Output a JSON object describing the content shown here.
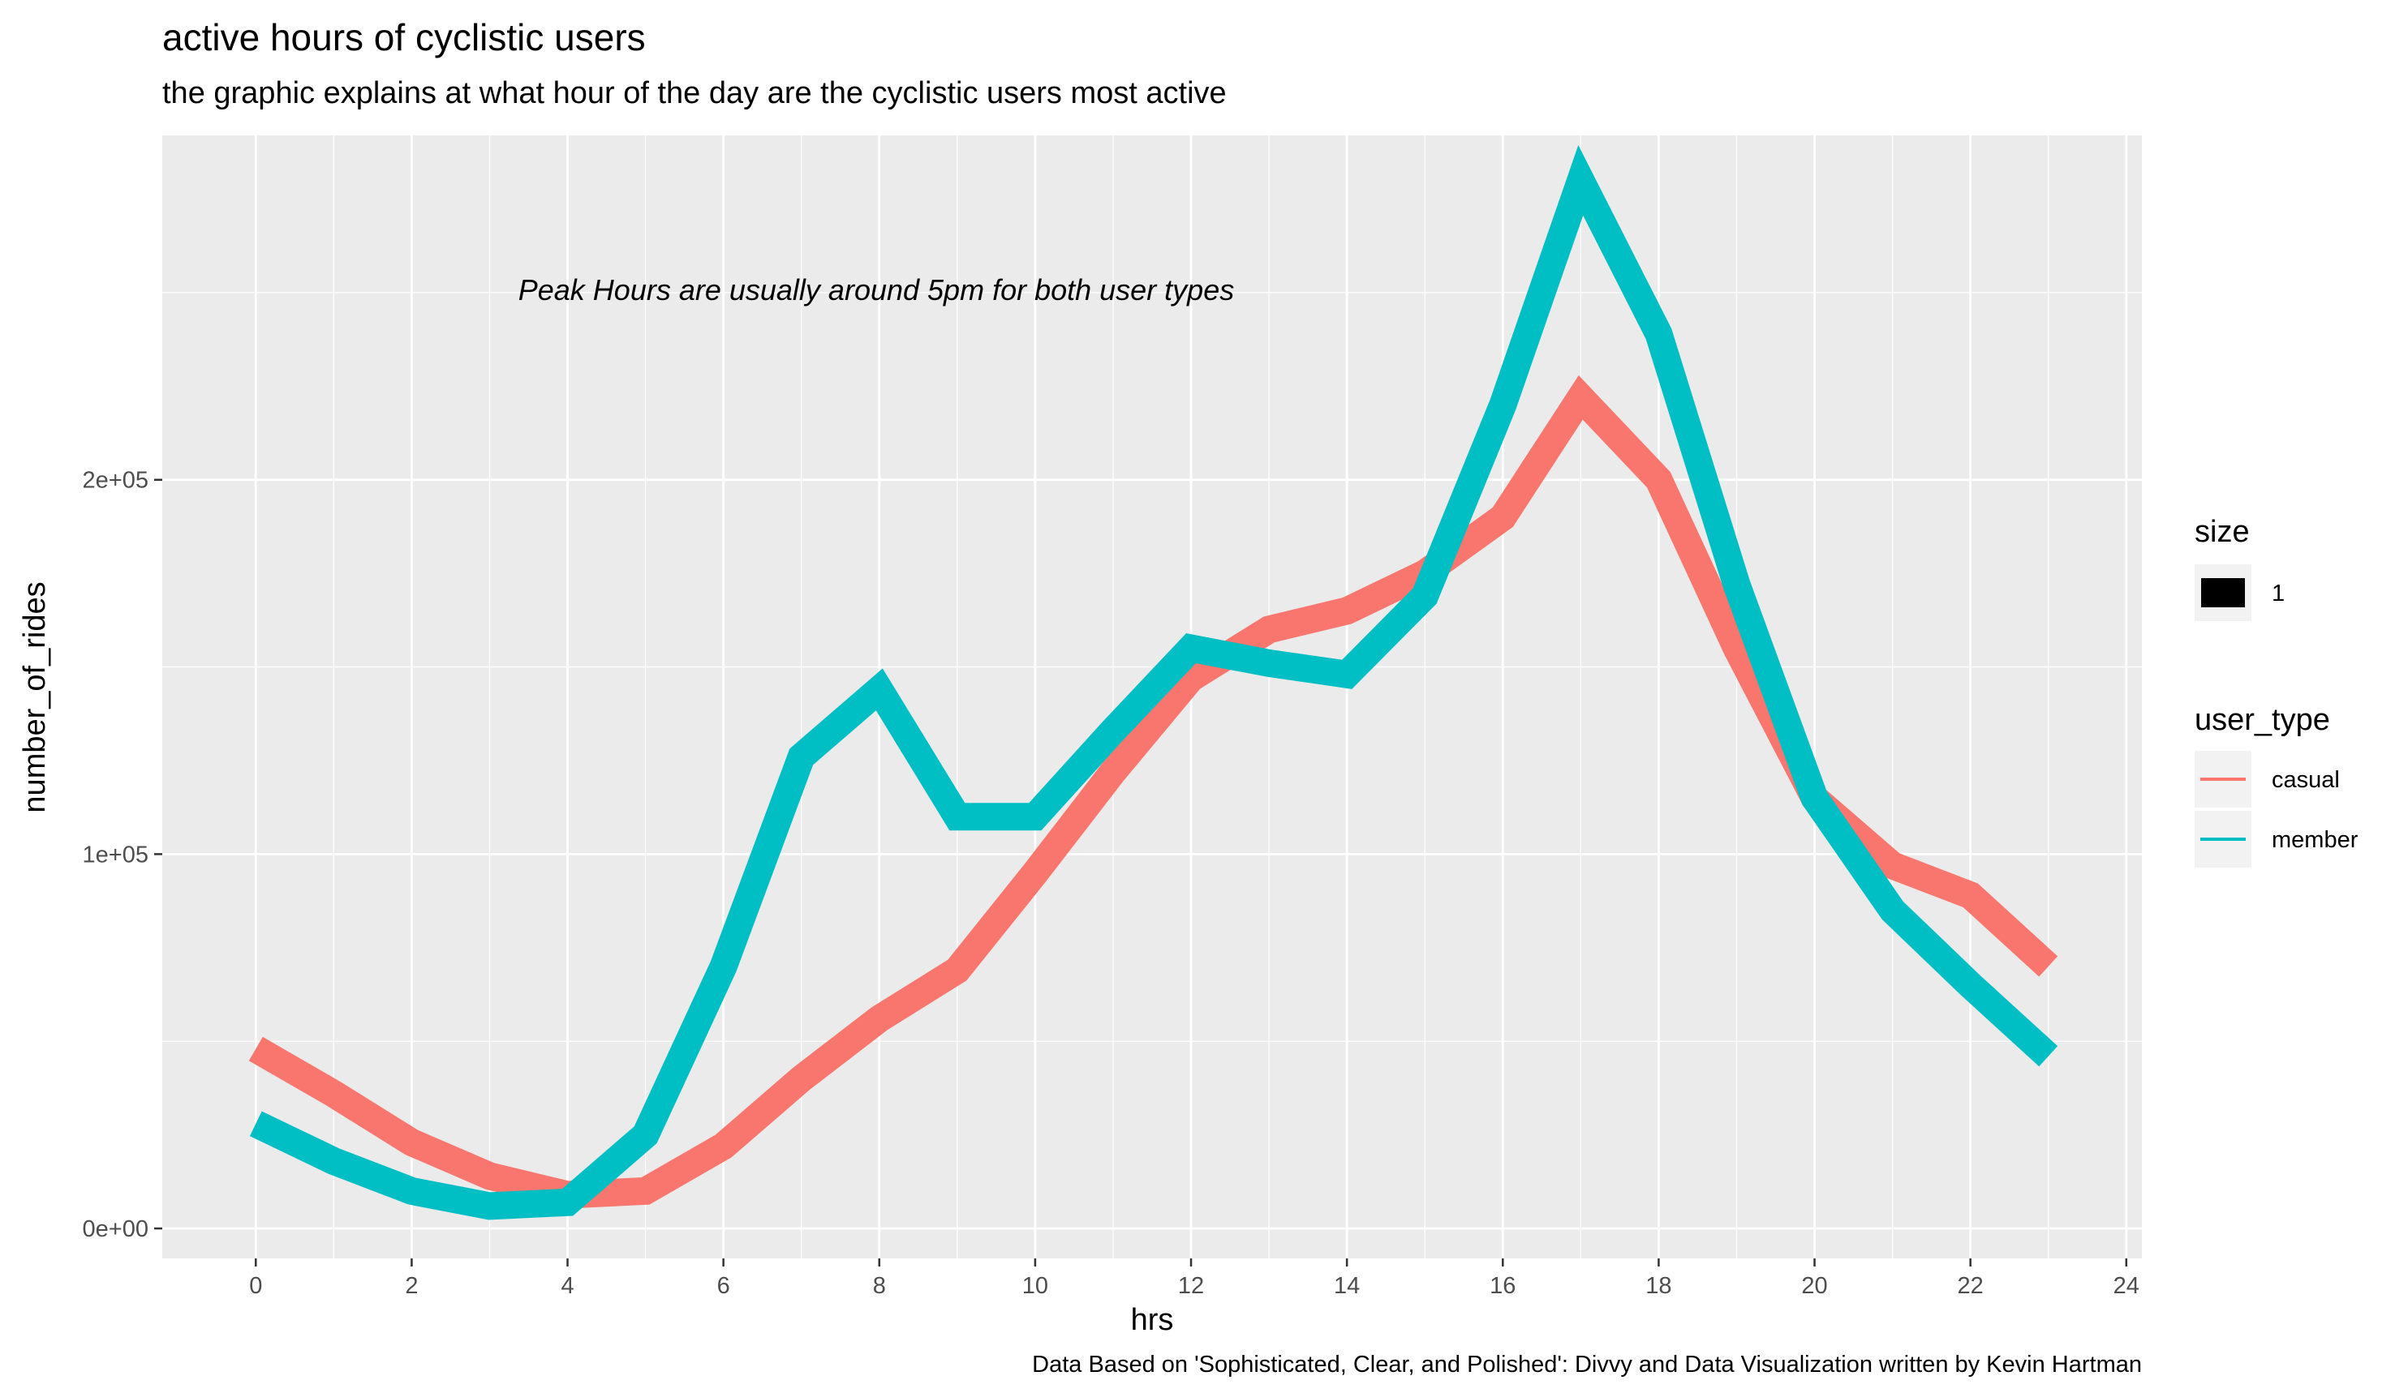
{
  "chart_data": {
    "type": "line",
    "title": "active hours of cyclistic users",
    "subtitle": "the graphic explains at what hour of the day are the cyclistic users most active",
    "xlabel": "hrs",
    "ylabel": "number_of_rides",
    "xlim": [
      -1.2,
      24.2
    ],
    "ylim": [
      -8000,
      292000
    ],
    "x_ticks": [
      0,
      2,
      4,
      6,
      8,
      10,
      12,
      14,
      16,
      18,
      20,
      22,
      24
    ],
    "y_ticks": [
      0,
      100000,
      200000
    ],
    "y_tick_labels": [
      "0e+00",
      "1e+05",
      "2e+05"
    ],
    "grid": true,
    "x": [
      0,
      1,
      2,
      3,
      4,
      5,
      6,
      7,
      8,
      9,
      10,
      11,
      12,
      13,
      14,
      15,
      16,
      17,
      18,
      19,
      20,
      21,
      22,
      23
    ],
    "series": [
      {
        "name": "casual",
        "color": "#F8766D",
        "values": [
          48000,
          36000,
          23000,
          14000,
          9000,
          10000,
          22000,
          40000,
          56000,
          69000,
          95000,
          122000,
          147000,
          160000,
          165000,
          175000,
          190000,
          222000,
          200000,
          155000,
          115000,
          97000,
          89000,
          70000
        ]
      },
      {
        "name": "member",
        "color": "#00BFC4",
        "values": [
          28000,
          18000,
          10000,
          6000,
          7000,
          25000,
          70000,
          126000,
          144000,
          110000,
          110000,
          133000,
          155000,
          151000,
          148000,
          169000,
          220000,
          280000,
          239000,
          172000,
          115000,
          85000,
          65000,
          46000
        ]
      }
    ],
    "annotation": "Peak Hours are usually around 5pm for both user types",
    "legend": {
      "position": "right",
      "size_title": "size",
      "size_label": "1",
      "color_title": "user_type"
    },
    "caption": "Data Based on 'Sophisticated, Clear, and Polished': Divvy and Data Visualization written by Kevin Hartman"
  }
}
